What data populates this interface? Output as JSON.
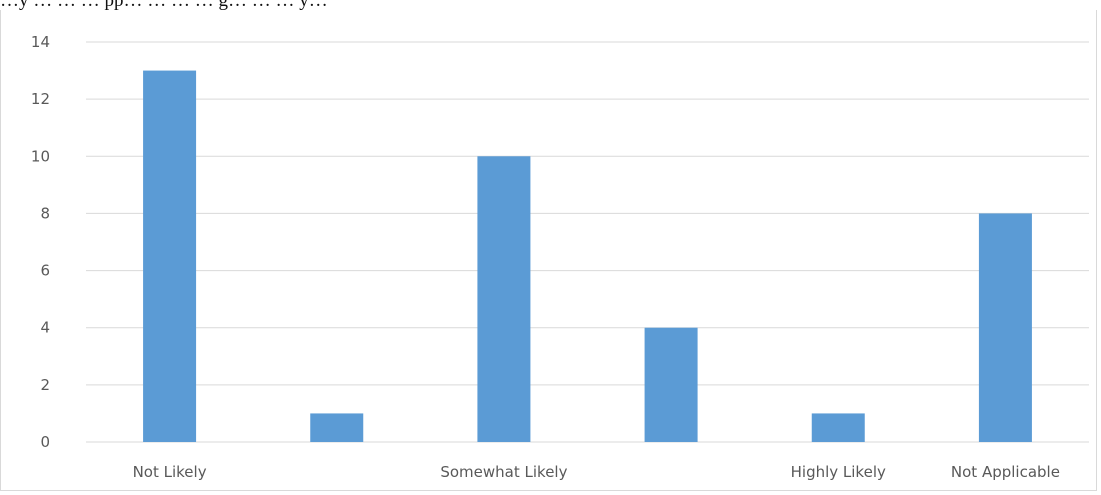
{
  "header_text": "…y … … … pp… … … … g… … … y…",
  "chart_data": {
    "type": "bar",
    "categories": [
      "Not Likely",
      "",
      "Somewhat Likely",
      "",
      "Highly Likely",
      "Not Applicable"
    ],
    "values": [
      13,
      1,
      10,
      4,
      1,
      8
    ],
    "ylim": [
      0,
      14
    ],
    "yticks": [
      "0",
      "2",
      "4",
      "6",
      "8",
      "10",
      "12",
      "14"
    ],
    "title": "",
    "xlabel": "",
    "ylabel": "",
    "grid": true,
    "legend": "none",
    "colors": {
      "bar": "#5b9bd5",
      "grid": "#d9d9d9",
      "text": "#595959"
    }
  }
}
